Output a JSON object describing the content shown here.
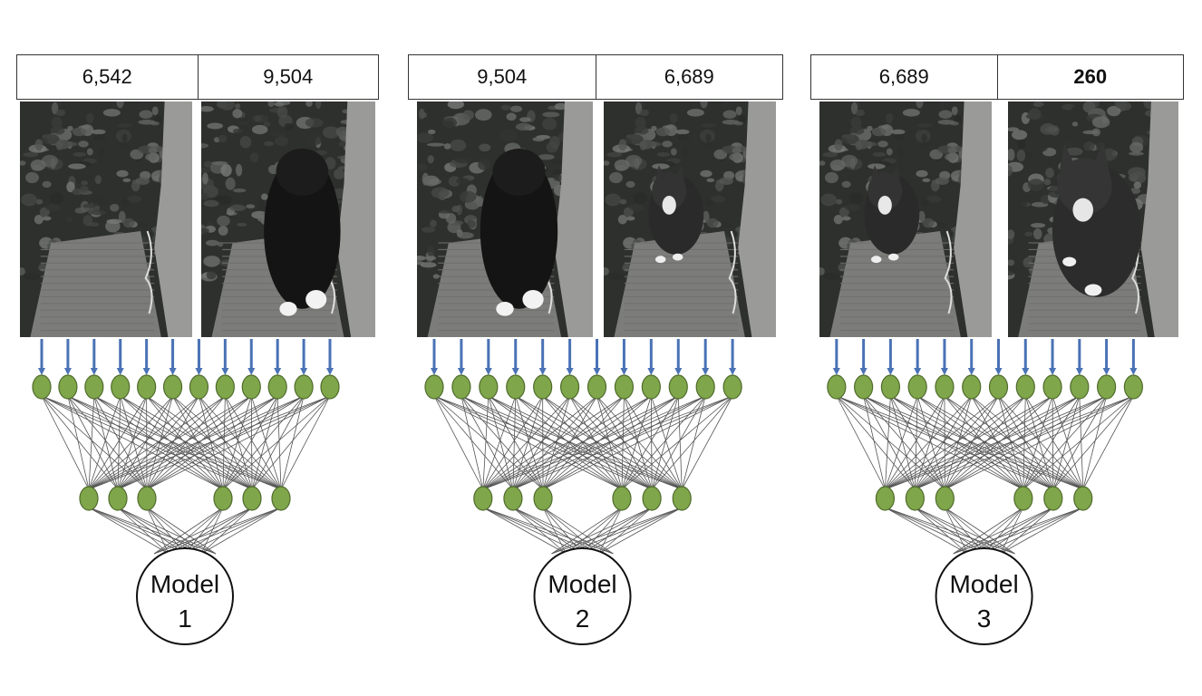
{
  "colors": {
    "node_fill": "#7fa64a",
    "node_stroke": "#4f6b2c",
    "arrow": "#4a72b5",
    "edge": "#555555"
  },
  "models": [
    {
      "frames": [
        {
          "label": "6,542",
          "bold": false,
          "cat": "none"
        },
        {
          "label": "9,504",
          "bold": false,
          "cat": "black-cat-back"
        }
      ],
      "model_word": "Model",
      "model_number": "1"
    },
    {
      "frames": [
        {
          "label": "9,504",
          "bold": false,
          "cat": "black-cat-back"
        },
        {
          "label": "6,689",
          "bold": false,
          "cat": "tuxedo-cat-far"
        }
      ],
      "model_word": "Model",
      "model_number": "2"
    },
    {
      "frames": [
        {
          "label": "6,689",
          "bold": false,
          "cat": "tuxedo-cat-far"
        },
        {
          "label": "260",
          "bold": true,
          "cat": "tuxedo-cat-near"
        }
      ],
      "model_word": "Model",
      "model_number": "3"
    }
  ]
}
